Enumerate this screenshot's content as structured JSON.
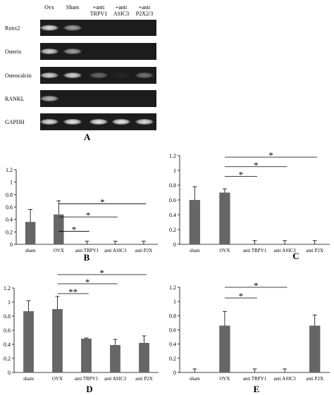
{
  "gel": {
    "lanes": [
      {
        "label": "Ovx"
      },
      {
        "label": "Sham"
      },
      {
        "label": "+anti\nTRPV1"
      },
      {
        "label": "+anti\nASIC3"
      },
      {
        "label": "+anti\nP2X2/3"
      }
    ],
    "rows": [
      {
        "label": "Runx2",
        "bands": [
          0.9,
          0.6,
          0.0,
          0.0,
          0.0
        ]
      },
      {
        "label": "Osterix",
        "bands": [
          0.85,
          0.6,
          0.0,
          0.0,
          0.0
        ]
      },
      {
        "label": "Osteocalcin",
        "bands": [
          0.85,
          0.85,
          0.35,
          0.05,
          0.4
        ]
      },
      {
        "label": "RANKL",
        "bands": [
          0.7,
          0.0,
          0.0,
          0.0,
          0.0
        ]
      },
      {
        "label": "GAPDH",
        "bands": [
          0.9,
          0.95,
          0.95,
          0.95,
          0.9
        ]
      }
    ],
    "panel_letter": "A"
  },
  "chart_data": [
    {
      "type": "bar",
      "panel": "B",
      "categories": [
        "sham",
        "OVX",
        "anti TRPV1",
        "anti ASIC3",
        "anti P2X"
      ],
      "values": [
        0.36,
        0.48,
        0.0,
        0.0,
        0.0
      ],
      "errors": [
        0.2,
        0.22,
        0.05,
        0.05,
        0.05
      ],
      "ylim": [
        0,
        1.2
      ],
      "yticks": [
        "0",
        "0.2",
        "0.4",
        "0.6",
        "0.8",
        "1",
        "1.2"
      ],
      "significance": [
        {
          "from": 1,
          "to": 2,
          "y": 0.21,
          "label": "*"
        },
        {
          "from": 1,
          "to": 3,
          "y": 0.44,
          "label": "*"
        },
        {
          "from": 1,
          "to": 4,
          "y": 0.65,
          "label": "*"
        }
      ]
    },
    {
      "type": "bar",
      "panel": "C",
      "categories": [
        "sham",
        "OVX",
        "anti TRPV1",
        "anti ASIC3",
        "anti P2X"
      ],
      "values": [
        0.6,
        0.7,
        0.0,
        0.0,
        0.0
      ],
      "errors": [
        0.18,
        0.05,
        0.05,
        0.05,
        0.05
      ],
      "ylim": [
        0,
        1.2
      ],
      "yticks": [
        "0",
        "0.2",
        "0.4",
        "0.6",
        "0.8",
        "1",
        "1.2"
      ],
      "significance": [
        {
          "from": 1,
          "to": 2,
          "y": 0.92,
          "label": "*"
        },
        {
          "from": 1,
          "to": 3,
          "y": 1.05,
          "label": "*"
        },
        {
          "from": 1,
          "to": 4,
          "y": 1.18,
          "label": "*"
        }
      ]
    },
    {
      "type": "bar",
      "panel": "D",
      "categories": [
        "sham",
        "OVX",
        "anti TRPV1",
        "anti ASIC3",
        "anti P2X"
      ],
      "values": [
        0.87,
        0.9,
        0.48,
        0.39,
        0.42
      ],
      "errors": [
        0.15,
        0.18,
        0.01,
        0.08,
        0.1
      ],
      "ylim": [
        0,
        1.2
      ],
      "yticks": [
        "0",
        "0.2",
        "0.4",
        "0.6",
        "0.8",
        "1",
        "1.2"
      ],
      "significance": [
        {
          "from": 1,
          "to": 2,
          "y": 1.12,
          "label": "**"
        },
        {
          "from": 1,
          "to": 3,
          "y": 1.26,
          "label": "*"
        },
        {
          "from": 1,
          "to": 4,
          "y": 1.39,
          "label": "*"
        }
      ]
    },
    {
      "type": "bar",
      "panel": "E",
      "categories": [
        "sham",
        "OVX",
        "anti TRPV1",
        "anti ASIC3",
        "anti P2X"
      ],
      "values": [
        0.0,
        0.66,
        0.0,
        0.0,
        0.66
      ],
      "errors": [
        0.05,
        0.2,
        0.05,
        0.05,
        0.15
      ],
      "ylim": [
        0,
        1.2
      ],
      "yticks": [
        "0",
        "0.2",
        "0.4",
        "0.6",
        "0.8",
        "1",
        "1.2"
      ],
      "significance": [
        {
          "from": 1,
          "to": 2,
          "y": 1.05,
          "label": "*"
        },
        {
          "from": 1,
          "to": 3,
          "y": 1.2,
          "label": "*"
        }
      ]
    }
  ]
}
